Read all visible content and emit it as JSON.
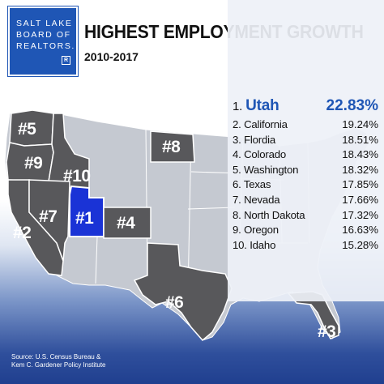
{
  "logo": {
    "lines": [
      "SALT LAKE",
      "BOARD OF",
      "REALTORS."
    ],
    "mark": "R"
  },
  "header": {
    "title": "HIGHEST EMPLOYMENT GROWTH",
    "subtitle": "2010-2017"
  },
  "rankings": [
    {
      "rank": "1.",
      "state": "Utah",
      "value": "22.83%"
    },
    {
      "rank": "2.",
      "state": "California",
      "value": "19.24%"
    },
    {
      "rank": "3.",
      "state": "Flordia",
      "value": "18.51%"
    },
    {
      "rank": "4.",
      "state": "Colorado",
      "value": "18.43%"
    },
    {
      "rank": "5.",
      "state": "Washington",
      "value": "18.32%"
    },
    {
      "rank": "6.",
      "state": "Texas",
      "value": "17.85%"
    },
    {
      "rank": "7.",
      "state": "Nevada",
      "value": "17.66%"
    },
    {
      "rank": "8.",
      "state": "North Dakota",
      "value": "17.32%"
    },
    {
      "rank": "9.",
      "state": "Oregon",
      "value": "16.63%"
    },
    {
      "rank": "10.",
      "state": "Idaho",
      "value": "15.28%"
    }
  ],
  "map_labels": {
    "utah": "#1",
    "california": "#2",
    "florida": "#3",
    "colorado": "#4",
    "washington": "#5",
    "texas": "#6",
    "nevada": "#7",
    "north_dakota": "#8",
    "oregon": "#9",
    "idaho": "#10"
  },
  "source": [
    "Source: U.S. Census Bureau &",
    "Kem C. Gardener Policy Institute"
  ],
  "colors": {
    "highlight": "#1a33d6",
    "ranked": "#58585b",
    "other": "#c5c9d1",
    "brand": "#1f56b5"
  }
}
